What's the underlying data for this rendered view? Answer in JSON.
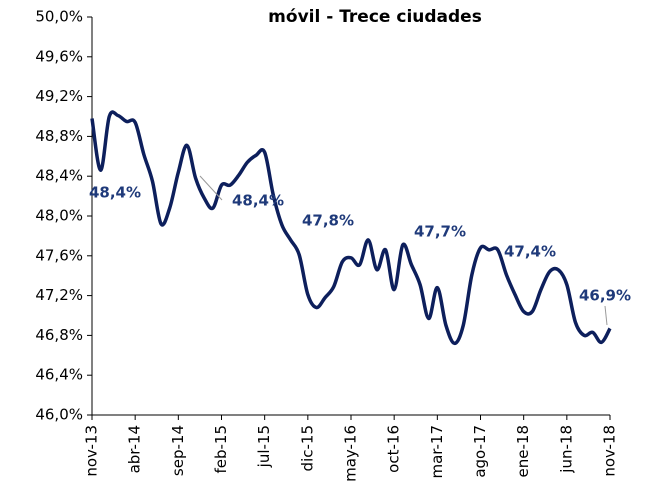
{
  "chart_data": {
    "type": "line",
    "title": "móvil - Trece ciudades",
    "categories": [
      "nov-13",
      null,
      null,
      null,
      null,
      "abr-14",
      null,
      null,
      null,
      null,
      "sep-14",
      null,
      null,
      null,
      null,
      "feb-15",
      null,
      null,
      null,
      null,
      "jul-15",
      null,
      null,
      null,
      null,
      "dic-15",
      null,
      null,
      null,
      null,
      "may-16",
      null,
      null,
      null,
      null,
      "oct-16",
      null,
      null,
      null,
      null,
      "mar-17",
      null,
      null,
      null,
      null,
      "ago-17",
      null,
      null,
      null,
      null,
      "ene-18",
      null,
      null,
      null,
      null,
      "jun-18",
      null,
      null,
      null,
      null,
      "nov-18"
    ],
    "series": [
      {
        "color": "#0d1f5c",
        "values": [
          48.98,
          48.46,
          49.0,
          49.01,
          48.95,
          48.94,
          48.62,
          48.35,
          47.92,
          48.08,
          48.44,
          48.71,
          48.38,
          48.18,
          48.08,
          48.31,
          48.31,
          48.41,
          48.54,
          48.61,
          48.64,
          48.21,
          47.91,
          47.76,
          47.61,
          47.21,
          47.08,
          47.18,
          47.29,
          47.54,
          47.58,
          47.51,
          47.76,
          47.46,
          47.66,
          47.26,
          47.71,
          47.51,
          47.31,
          46.97,
          47.28,
          46.9,
          46.72,
          46.9,
          47.41,
          47.68,
          47.66,
          47.66,
          47.41,
          47.21,
          47.04,
          47.04,
          47.26,
          47.44,
          47.46,
          47.31,
          46.93,
          46.8,
          46.83,
          46.73,
          46.87
        ]
      }
    ],
    "annotations": [
      "48,4%",
      "48,4%",
      "47,8%",
      "47,7%",
      "47,4%",
      "46,9%"
    ],
    "ylim": [
      46.0,
      50.0
    ],
    "yticks": [
      {
        "value": 46.0,
        "label": "46,0%"
      },
      {
        "value": 46.4,
        "label": "46,4%"
      },
      {
        "value": 46.8,
        "label": "46,8%"
      },
      {
        "value": 47.2,
        "label": "47,2%"
      },
      {
        "value": 47.6,
        "label": "47,6%"
      },
      {
        "value": 48.0,
        "label": "48,0%"
      },
      {
        "value": 48.4,
        "label": "48,4%"
      },
      {
        "value": 48.8,
        "label": "48,8%"
      },
      {
        "value": 49.2,
        "label": "49,2%"
      },
      {
        "value": 49.6,
        "label": "49,6%"
      },
      {
        "value": 50.0,
        "label": "50,0%"
      }
    ]
  }
}
